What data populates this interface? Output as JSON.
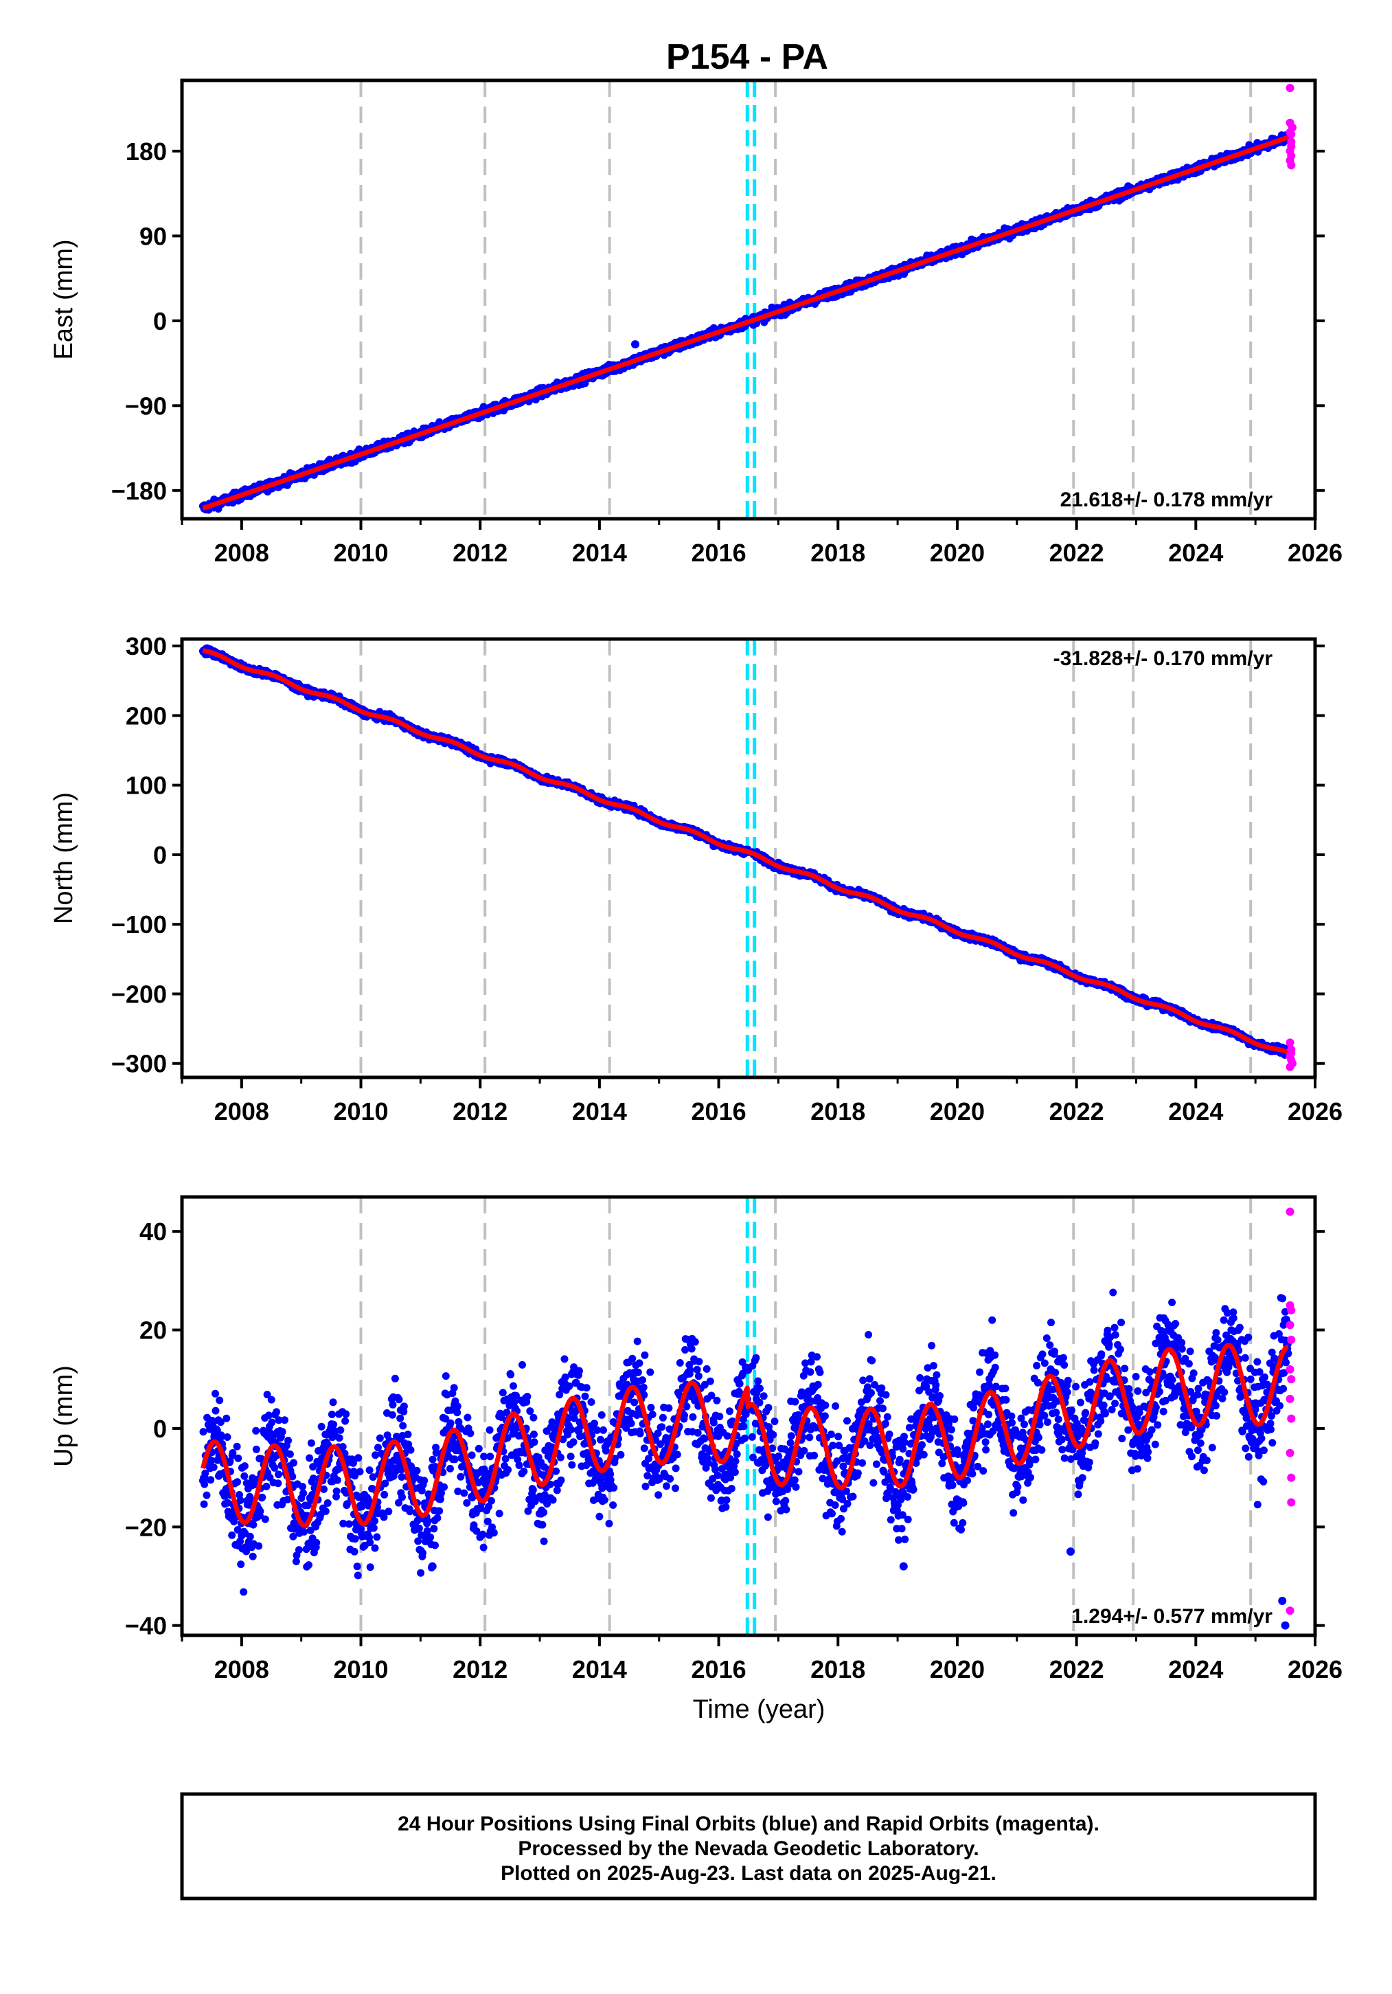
{
  "title": "P154 - PA",
  "footer": {
    "line1": "24 Hour Positions Using Final Orbits (blue) and Rapid Orbits (magenta).",
    "line2": "Processed by the Nevada Geodetic Laboratory.",
    "line3": "Plotted on 2025-Aug-23. Last data on 2025-Aug-21."
  },
  "colors": {
    "final": "#0000ff",
    "rapid": "#ff00ff",
    "model": "#ff0000",
    "equipment_change": "#c0c0c0",
    "event": "#00e5ff"
  },
  "chart_data": [
    {
      "type": "scatter",
      "component": "east",
      "xlabel": "",
      "ylabel": "East (mm)",
      "xlim": [
        2007.0,
        2026.0
      ],
      "ylim": [
        -210,
        255
      ],
      "xticks": [
        "2008",
        "2010",
        "2012",
        "2014",
        "2016",
        "2018",
        "2020",
        "2022",
        "2024",
        "2026"
      ],
      "yticks": [
        "-180",
        "-90",
        "0",
        "90",
        "180"
      ],
      "rate_label": "21.618+/- 0.178 mm/yr",
      "rate_position": "bottom-right",
      "trend": {
        "t0": 2016.55,
        "rate": 21.618,
        "annual_amp": 0,
        "offset_at_event": 0
      },
      "series_extent": [
        2007.35,
        2025.55
      ],
      "rapid_points": [
        [
          2025.58,
          247
        ],
        [
          2025.58,
          210
        ],
        [
          2025.58,
          200
        ],
        [
          2025.6,
          190
        ],
        [
          2025.6,
          185
        ],
        [
          2025.58,
          180
        ],
        [
          2025.6,
          175
        ],
        [
          2025.58,
          170
        ],
        [
          2025.6,
          198
        ],
        [
          2025.62,
          205
        ],
        [
          2025.6,
          165
        ]
      ],
      "outliers": [
        [
          2014.6,
          -25
        ]
      ],
      "equipment_changes": [
        2010.0,
        2012.08,
        2014.17,
        2016.95,
        2021.95,
        2022.95,
        2024.92
      ],
      "events": [
        2016.48,
        2016.6
      ]
    },
    {
      "type": "scatter",
      "component": "north",
      "xlabel": "",
      "ylabel": "North (mm)",
      "xlim": [
        2007.0,
        2026.0
      ],
      "ylim": [
        -320,
        310
      ],
      "xticks": [
        "2008",
        "2010",
        "2012",
        "2014",
        "2016",
        "2018",
        "2020",
        "2022",
        "2024",
        "2026"
      ],
      "yticks": [
        "-300",
        "-200",
        "-100",
        "0",
        "100",
        "200",
        "300"
      ],
      "rate_label": "-31.828+/- 0.170 mm/yr",
      "rate_position": "top-right",
      "trend": {
        "t0": 2016.55,
        "rate": -31.828,
        "annual_amp": 2.5,
        "offset_at_event": 0
      },
      "series_extent": [
        2007.35,
        2025.55
      ],
      "rapid_points": [
        [
          2025.58,
          -270
        ],
        [
          2025.6,
          -280
        ],
        [
          2025.58,
          -290
        ],
        [
          2025.6,
          -295
        ],
        [
          2025.62,
          -300
        ],
        [
          2025.58,
          -305
        ],
        [
          2025.6,
          -285
        ]
      ],
      "outliers": [],
      "equipment_changes": [
        2010.0,
        2012.08,
        2014.17,
        2016.95,
        2021.95,
        2022.95,
        2024.92
      ],
      "events": [
        2016.48,
        2016.6
      ]
    },
    {
      "type": "scatter",
      "component": "up",
      "xlabel": "Time (year)",
      "ylabel": "Up (mm)",
      "xlim": [
        2007.0,
        2026.0
      ],
      "ylim": [
        -42,
        47
      ],
      "xticks": [
        "2008",
        "2010",
        "2012",
        "2014",
        "2016",
        "2018",
        "2020",
        "2022",
        "2024",
        "2026"
      ],
      "yticks": [
        "-40",
        "-20",
        "0",
        "20",
        "40"
      ],
      "rate_label": "1.294+/- 0.577 mm/yr",
      "rate_position": "bottom-right",
      "trend": {
        "t0": 2016.55,
        "rate": 1.294,
        "annual_amp": 8.0,
        "offset_at_event": -4
      },
      "series_extent": [
        2007.35,
        2025.55
      ],
      "rapid_points": [
        [
          2025.58,
          44
        ],
        [
          2025.58,
          25
        ],
        [
          2025.6,
          24
        ],
        [
          2025.58,
          21
        ],
        [
          2025.6,
          18
        ],
        [
          2025.58,
          12
        ],
        [
          2025.6,
          10
        ],
        [
          2025.58,
          6
        ],
        [
          2025.6,
          2
        ],
        [
          2025.58,
          -5
        ],
        [
          2025.6,
          -10
        ],
        [
          2025.58,
          -37
        ],
        [
          2025.6,
          -15
        ]
      ],
      "outliers": [
        [
          2011.2,
          -28
        ],
        [
          2019.1,
          -28
        ],
        [
          2021.9,
          -25
        ],
        [
          2025.5,
          -40
        ],
        [
          2025.45,
          -35
        ]
      ],
      "equipment_changes": [
        2010.0,
        2012.08,
        2014.17,
        2016.95,
        2021.95,
        2022.95,
        2024.92
      ],
      "events": [
        2016.48,
        2016.6
      ]
    }
  ]
}
